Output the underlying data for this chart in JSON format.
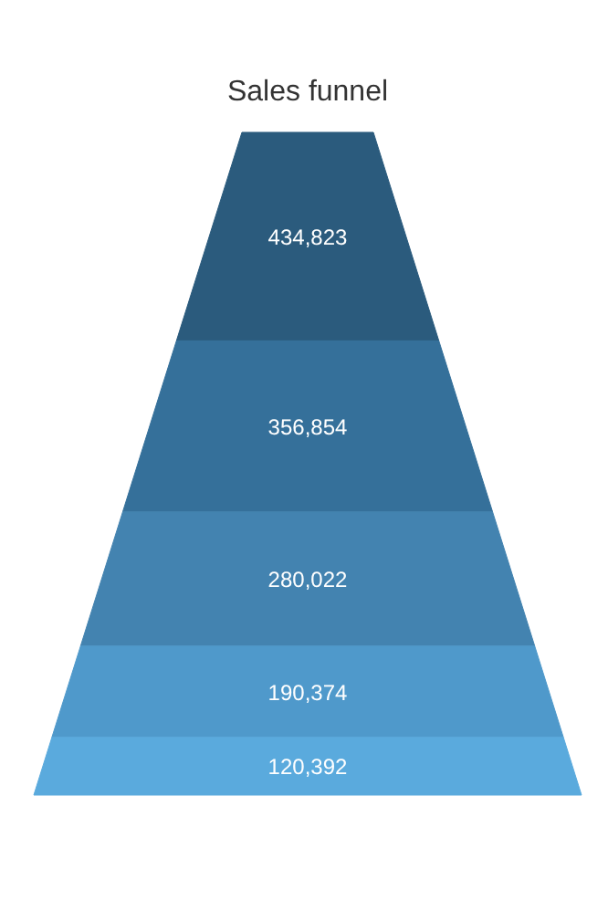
{
  "chart_data": {
    "type": "other",
    "title": "Sales funnel",
    "categories": [
      null,
      null,
      null,
      null,
      null
    ],
    "values": [
      434823,
      356854,
      280022,
      190374,
      120392
    ],
    "colors": [
      "#2b5b7d",
      "#35709a",
      "#4383b0",
      "#4f99cb",
      "#5aaadd"
    ],
    "value_labels": [
      "434,823",
      "356,854",
      "280,022",
      "190,374",
      "120,392"
    ]
  }
}
